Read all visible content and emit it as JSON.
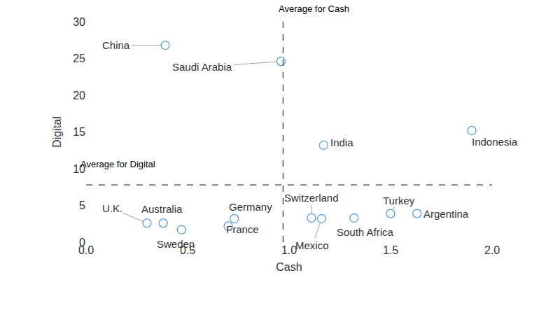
{
  "chart_data": {
    "type": "scatter",
    "x_label": "Cash",
    "y_label": "Digital",
    "labels": [
      "China",
      "Saudi Arabia",
      "India",
      "Indonesia",
      "U.K.",
      "Australia",
      "Sweden",
      "France",
      "Germany",
      "Switzerland",
      "Mexico",
      "South Africa",
      "Turkey",
      "Argentina"
    ],
    "x": [
      0.39,
      0.96,
      1.17,
      1.9,
      0.3,
      0.38,
      0.47,
      0.7,
      0.73,
      1.11,
      1.16,
      1.32,
      1.5,
      1.63
    ],
    "y": [
      26.8,
      24.6,
      13.2,
      15.2,
      2.6,
      2.6,
      1.7,
      2.2,
      3.2,
      3.3,
      3.2,
      3.3,
      3.9,
      3.9
    ],
    "color": "#5b9bd5",
    "marker": "circle-open",
    "xlim": [
      0,
      2.0
    ],
    "xticks": [
      {
        "value": 0,
        "label": "0.0"
      },
      {
        "value": 0.5,
        "label": "0.5"
      },
      {
        "value": 1,
        "label": "1.0"
      },
      {
        "value": 1.5,
        "label": "1.5"
      },
      {
        "value": 2,
        "label": "2.0"
      }
    ],
    "ylim": [
      0,
      30
    ],
    "yticks": [
      0,
      5,
      10,
      15,
      20,
      25,
      30
    ],
    "grid": false,
    "annotations": [
      {
        "axis": "x",
        "value": 0.97,
        "label": "Average for Cash"
      },
      {
        "axis": "y",
        "value": 7.8,
        "label": "Average for Digital"
      }
    ]
  }
}
